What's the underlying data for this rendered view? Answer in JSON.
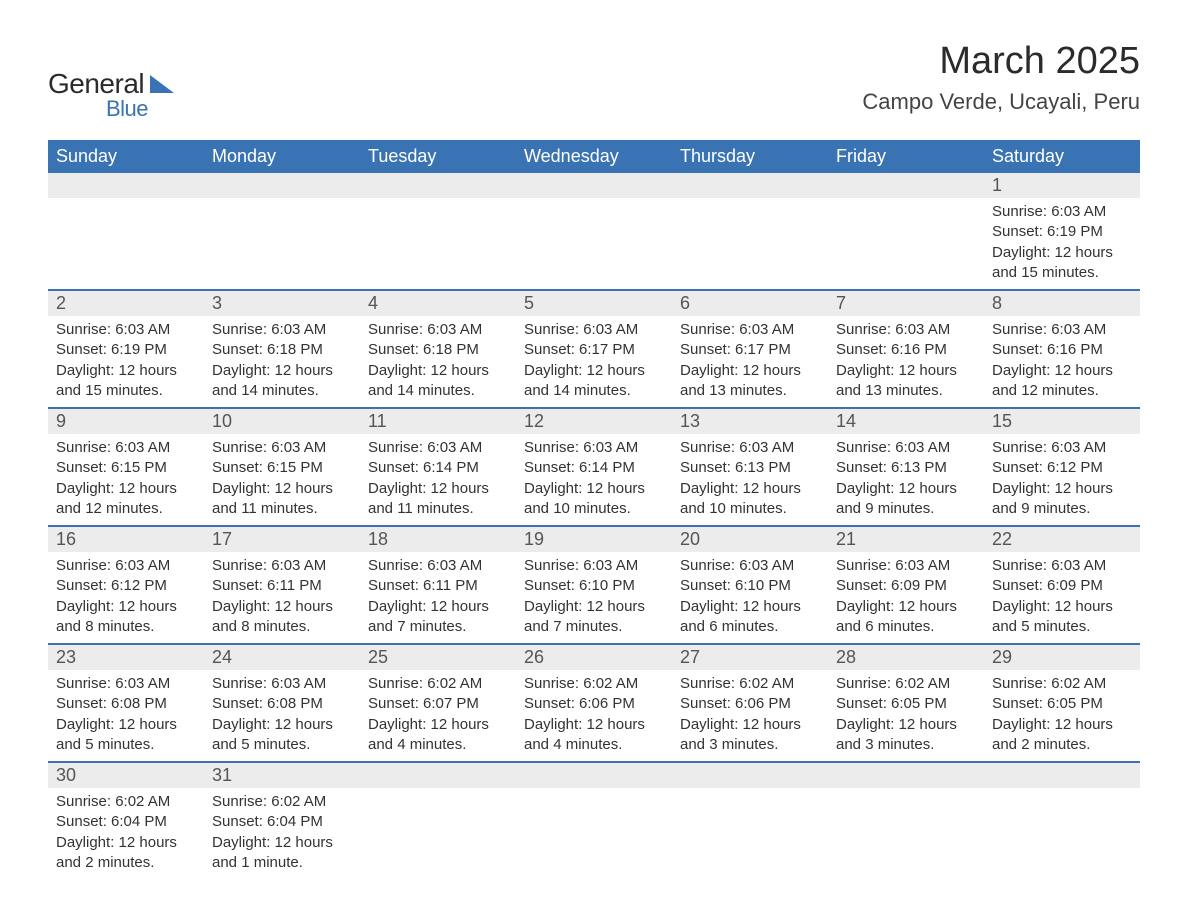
{
  "logo": {
    "text_top": "General",
    "text_bottom": "Blue",
    "text_color_top": "#2b2b2b",
    "text_color_bottom": "#3a73b4",
    "shape_color": "#3a73b4"
  },
  "title": "March 2025",
  "subtitle": "Campo Verde, Ucayali, Peru",
  "colors": {
    "header_bg": "#3a73b4",
    "header_fg": "#ffffff",
    "daynum_bg": "#ececec",
    "row_divider": "#3a73b4",
    "text": "#333333"
  },
  "columns": [
    "Sunday",
    "Monday",
    "Tuesday",
    "Wednesday",
    "Thursday",
    "Friday",
    "Saturday"
  ],
  "weeks": [
    [
      null,
      null,
      null,
      null,
      null,
      null,
      {
        "day": "1",
        "sunrise": "6:03 AM",
        "sunset": "6:19 PM",
        "daylight": "12 hours and 15 minutes."
      }
    ],
    [
      {
        "day": "2",
        "sunrise": "6:03 AM",
        "sunset": "6:19 PM",
        "daylight": "12 hours and 15 minutes."
      },
      {
        "day": "3",
        "sunrise": "6:03 AM",
        "sunset": "6:18 PM",
        "daylight": "12 hours and 14 minutes."
      },
      {
        "day": "4",
        "sunrise": "6:03 AM",
        "sunset": "6:18 PM",
        "daylight": "12 hours and 14 minutes."
      },
      {
        "day": "5",
        "sunrise": "6:03 AM",
        "sunset": "6:17 PM",
        "daylight": "12 hours and 14 minutes."
      },
      {
        "day": "6",
        "sunrise": "6:03 AM",
        "sunset": "6:17 PM",
        "daylight": "12 hours and 13 minutes."
      },
      {
        "day": "7",
        "sunrise": "6:03 AM",
        "sunset": "6:16 PM",
        "daylight": "12 hours and 13 minutes."
      },
      {
        "day": "8",
        "sunrise": "6:03 AM",
        "sunset": "6:16 PM",
        "daylight": "12 hours and 12 minutes."
      }
    ],
    [
      {
        "day": "9",
        "sunrise": "6:03 AM",
        "sunset": "6:15 PM",
        "daylight": "12 hours and 12 minutes."
      },
      {
        "day": "10",
        "sunrise": "6:03 AM",
        "sunset": "6:15 PM",
        "daylight": "12 hours and 11 minutes."
      },
      {
        "day": "11",
        "sunrise": "6:03 AM",
        "sunset": "6:14 PM",
        "daylight": "12 hours and 11 minutes."
      },
      {
        "day": "12",
        "sunrise": "6:03 AM",
        "sunset": "6:14 PM",
        "daylight": "12 hours and 10 minutes."
      },
      {
        "day": "13",
        "sunrise": "6:03 AM",
        "sunset": "6:13 PM",
        "daylight": "12 hours and 10 minutes."
      },
      {
        "day": "14",
        "sunrise": "6:03 AM",
        "sunset": "6:13 PM",
        "daylight": "12 hours and 9 minutes."
      },
      {
        "day": "15",
        "sunrise": "6:03 AM",
        "sunset": "6:12 PM",
        "daylight": "12 hours and 9 minutes."
      }
    ],
    [
      {
        "day": "16",
        "sunrise": "6:03 AM",
        "sunset": "6:12 PM",
        "daylight": "12 hours and 8 minutes."
      },
      {
        "day": "17",
        "sunrise": "6:03 AM",
        "sunset": "6:11 PM",
        "daylight": "12 hours and 8 minutes."
      },
      {
        "day": "18",
        "sunrise": "6:03 AM",
        "sunset": "6:11 PM",
        "daylight": "12 hours and 7 minutes."
      },
      {
        "day": "19",
        "sunrise": "6:03 AM",
        "sunset": "6:10 PM",
        "daylight": "12 hours and 7 minutes."
      },
      {
        "day": "20",
        "sunrise": "6:03 AM",
        "sunset": "6:10 PM",
        "daylight": "12 hours and 6 minutes."
      },
      {
        "day": "21",
        "sunrise": "6:03 AM",
        "sunset": "6:09 PM",
        "daylight": "12 hours and 6 minutes."
      },
      {
        "day": "22",
        "sunrise": "6:03 AM",
        "sunset": "6:09 PM",
        "daylight": "12 hours and 5 minutes."
      }
    ],
    [
      {
        "day": "23",
        "sunrise": "6:03 AM",
        "sunset": "6:08 PM",
        "daylight": "12 hours and 5 minutes."
      },
      {
        "day": "24",
        "sunrise": "6:03 AM",
        "sunset": "6:08 PM",
        "daylight": "12 hours and 5 minutes."
      },
      {
        "day": "25",
        "sunrise": "6:02 AM",
        "sunset": "6:07 PM",
        "daylight": "12 hours and 4 minutes."
      },
      {
        "day": "26",
        "sunrise": "6:02 AM",
        "sunset": "6:06 PM",
        "daylight": "12 hours and 4 minutes."
      },
      {
        "day": "27",
        "sunrise": "6:02 AM",
        "sunset": "6:06 PM",
        "daylight": "12 hours and 3 minutes."
      },
      {
        "day": "28",
        "sunrise": "6:02 AM",
        "sunset": "6:05 PM",
        "daylight": "12 hours and 3 minutes."
      },
      {
        "day": "29",
        "sunrise": "6:02 AM",
        "sunset": "6:05 PM",
        "daylight": "12 hours and 2 minutes."
      }
    ],
    [
      {
        "day": "30",
        "sunrise": "6:02 AM",
        "sunset": "6:04 PM",
        "daylight": "12 hours and 2 minutes."
      },
      {
        "day": "31",
        "sunrise": "6:02 AM",
        "sunset": "6:04 PM",
        "daylight": "12 hours and 1 minute."
      },
      null,
      null,
      null,
      null,
      null
    ]
  ],
  "labels": {
    "sunrise_prefix": "Sunrise: ",
    "sunset_prefix": "Sunset: ",
    "daylight_prefix": "Daylight: "
  }
}
